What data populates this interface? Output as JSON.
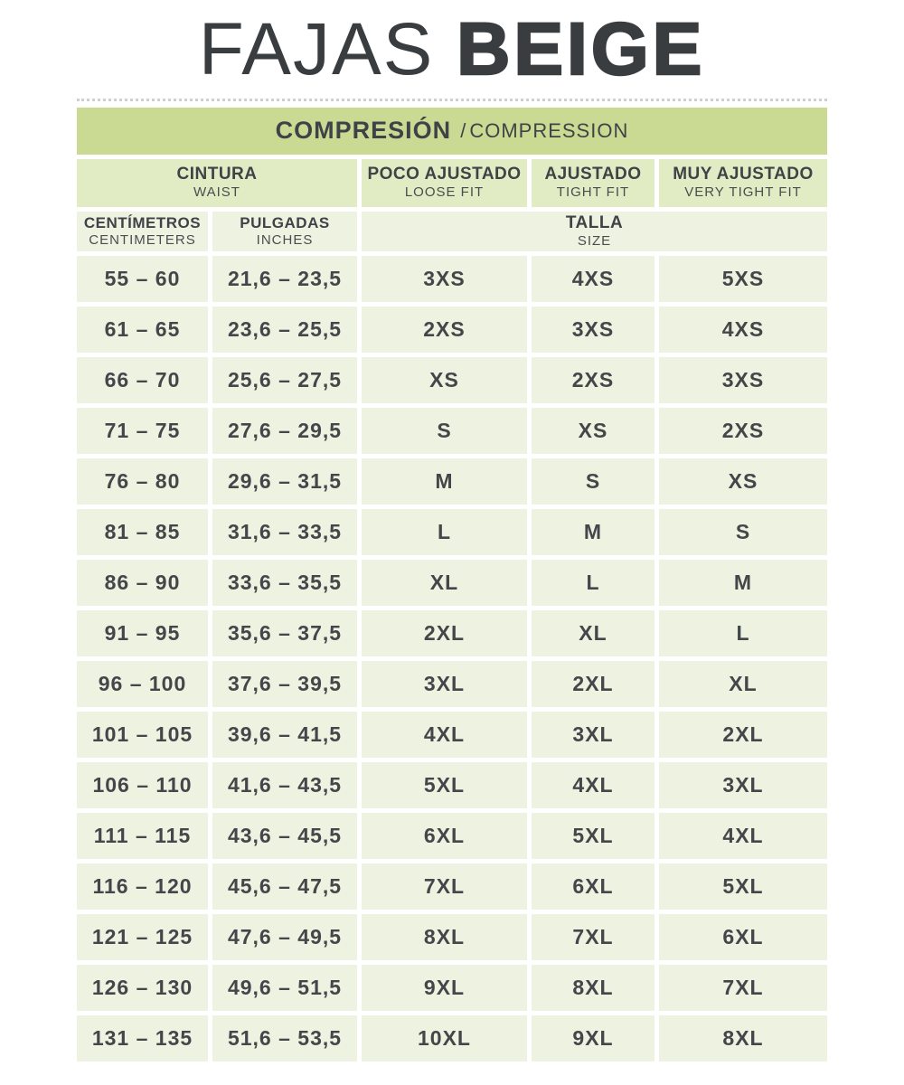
{
  "title": {
    "light": "FAJAS",
    "bold": "BEIGE"
  },
  "band": {
    "es": "COMPRESIÓN",
    "sep": "/",
    "en": "COMPRESSION"
  },
  "headers": {
    "cintura": {
      "es": "CINTURA",
      "en": "WAIST"
    },
    "poco_ajustado": {
      "es": "POCO AJUSTADO",
      "en": "LOOSE FIT"
    },
    "ajustado": {
      "es": "AJUSTADO",
      "en": "TIGHT FIT"
    },
    "muy_ajustado": {
      "es": "MUY AJUSTADO",
      "en": "VERY TIGHT FIT"
    },
    "centimetros": {
      "es": "CENTÍMETROS",
      "en": "CENTIMETERS"
    },
    "pulgadas": {
      "es": "PULGADAS",
      "en": "INCHES"
    },
    "talla": {
      "es": "TALLA",
      "en": "SIZE"
    }
  },
  "rows": [
    {
      "cm": "55 – 60",
      "inches": "21,6 – 23,5",
      "loose": "3XS",
      "tight": "4XS",
      "very_tight": "5XS"
    },
    {
      "cm": "61 – 65",
      "inches": "23,6 – 25,5",
      "loose": "2XS",
      "tight": "3XS",
      "very_tight": "4XS"
    },
    {
      "cm": "66 – 70",
      "inches": "25,6 – 27,5",
      "loose": "XS",
      "tight": "2XS",
      "very_tight": "3XS"
    },
    {
      "cm": "71 – 75",
      "inches": "27,6 – 29,5",
      "loose": "S",
      "tight": "XS",
      "very_tight": "2XS"
    },
    {
      "cm": "76 – 80",
      "inches": "29,6 – 31,5",
      "loose": "M",
      "tight": "S",
      "very_tight": "XS"
    },
    {
      "cm": "81 – 85",
      "inches": "31,6 – 33,5",
      "loose": "L",
      "tight": "M",
      "very_tight": "S"
    },
    {
      "cm": "86 – 90",
      "inches": "33,6 – 35,5",
      "loose": "XL",
      "tight": "L",
      "very_tight": "M"
    },
    {
      "cm": "91 – 95",
      "inches": "35,6 – 37,5",
      "loose": "2XL",
      "tight": "XL",
      "very_tight": "L"
    },
    {
      "cm": "96 – 100",
      "inches": "37,6 – 39,5",
      "loose": "3XL",
      "tight": "2XL",
      "very_tight": "XL"
    },
    {
      "cm": "101 – 105",
      "inches": "39,6 – 41,5",
      "loose": "4XL",
      "tight": "3XL",
      "very_tight": "2XL"
    },
    {
      "cm": "106 – 110",
      "inches": "41,6 – 43,5",
      "loose": "5XL",
      "tight": "4XL",
      "very_tight": "3XL"
    },
    {
      "cm": "111 – 115",
      "inches": "43,6 – 45,5",
      "loose": "6XL",
      "tight": "5XL",
      "very_tight": "4XL"
    },
    {
      "cm": "116 – 120",
      "inches": "45,6 – 47,5",
      "loose": "7XL",
      "tight": "6XL",
      "very_tight": "5XL"
    },
    {
      "cm": "121 – 125",
      "inches": "47,6 – 49,5",
      "loose": "8XL",
      "tight": "7XL",
      "very_tight": "6XL"
    },
    {
      "cm": "126 – 130",
      "inches": "49,6 – 51,5",
      "loose": "9XL",
      "tight": "8XL",
      "very_tight": "7XL"
    },
    {
      "cm": "131 – 135",
      "inches": "51,6 – 53,5",
      "loose": "10XL",
      "tight": "9XL",
      "very_tight": "8XL"
    }
  ],
  "colors": {
    "band_bg": "#cbda92",
    "header_bg": "#e2ecc4",
    "cell_bg": "#eef3e1",
    "title_text": "#3a3d3f",
    "body_text": "#43474a"
  }
}
